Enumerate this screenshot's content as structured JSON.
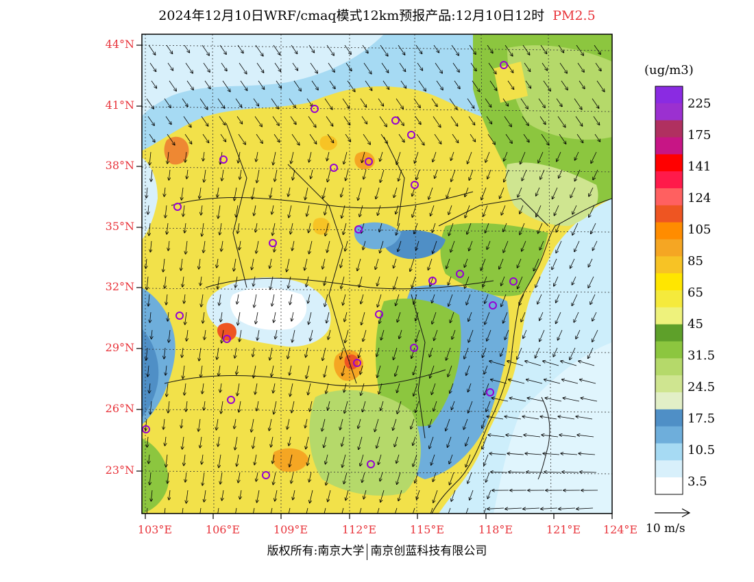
{
  "title": {
    "main": "2024年12月10日WRF/cmaq模式12km预报产品:12月10日12时",
    "variable": "PM2.5"
  },
  "axes": {
    "lat_labels": [
      "44°N",
      "41°N",
      "38°N",
      "35°N",
      "32°N",
      "29°N",
      "26°N",
      "23°N"
    ],
    "lon_labels": [
      "103°E",
      "106°E",
      "109°E",
      "112°E",
      "115°E",
      "118°E",
      "121°E",
      "124°E"
    ]
  },
  "legend": {
    "unit": "(ug/m3)",
    "colors": [
      "#8a2be2",
      "#9b30d0",
      "#b03060",
      "#c71585",
      "#ff0000",
      "#ff1a4a",
      "#ff6060",
      "#ee5522",
      "#ff8c00",
      "#f5a623",
      "#f7c325",
      "#ffe600",
      "#f5ea3c",
      "#eef27c",
      "#5ea02a",
      "#8cc63f",
      "#b5d96a",
      "#cfe590",
      "#e2efc7",
      "#4f8fc6",
      "#6eaedb",
      "#a6daf3",
      "#d8f0fb",
      "#ffffff"
    ],
    "labels": [
      "225",
      "175",
      "141",
      "124",
      "105",
      "85",
      "65",
      "45",
      "31.5",
      "24.5",
      "17.5",
      "10.5",
      "3.5"
    ]
  },
  "wind_reference": {
    "label": "10 m/s"
  },
  "copyright": {
    "left": "版权所有:南京大学",
    "right": "南京创蓝科技有限公司"
  },
  "colors": {
    "label_red": "#e8333a",
    "city_marker": "#9400d3",
    "sea": "#cdeefb"
  }
}
